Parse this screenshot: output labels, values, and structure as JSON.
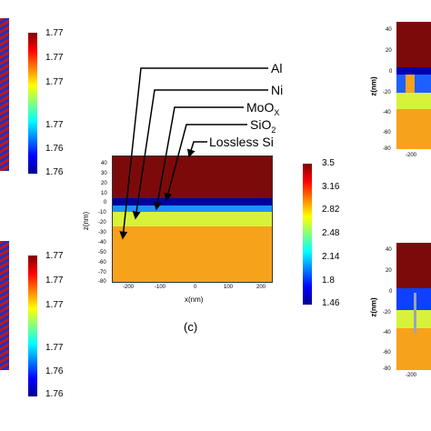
{
  "colormap": [
    "#00008f",
    "#0000ff",
    "#0080ff",
    "#00ffff",
    "#80ff80",
    "#ffff00",
    "#ff8000",
    "#ff0000",
    "#800000"
  ],
  "left_top_colorbar": {
    "ticks": [
      "1.77",
      "1.77",
      "1.77",
      "1.77",
      "1.76",
      "1.76"
    ]
  },
  "left_bottom_colorbar": {
    "ticks": [
      "1.77",
      "1.77",
      "1.77",
      "1.77",
      "1.76",
      "1.76"
    ]
  },
  "center_plot": {
    "caption": "(c)",
    "xlabel": "x(nm)",
    "ylabel": "z(nm)",
    "x_ticks": [
      "-200",
      "-100",
      "0",
      "100",
      "200"
    ],
    "z_ticks": [
      "40",
      "30",
      "20",
      "10",
      "0",
      "-10",
      "-20",
      "-30",
      "-40",
      "-50",
      "-60",
      "-70",
      "-80"
    ],
    "layers": [
      {
        "name": "Al",
        "color": "#7d0a0a"
      },
      {
        "name": "MoOx",
        "color": "#0000a0"
      },
      {
        "name": "SiO2",
        "color": "#1e90ff"
      },
      {
        "name": "Ni",
        "color": "#d8f23a"
      },
      {
        "name": "Lossless Si",
        "color": "#f7a21b"
      }
    ],
    "labels": {
      "al": "Al",
      "ni": "Ni",
      "moox_main": "MoO",
      "moox_sub": "X",
      "sio2_main": "SiO",
      "sio2_sub": "2",
      "si": "Lossless Si"
    },
    "colorbar_ticks": [
      "3.5",
      "3.16",
      "2.82",
      "2.48",
      "2.14",
      "1.8",
      "1.46"
    ]
  },
  "right_top_plot": {
    "ylabel": "z(nm)",
    "z_ticks": [
      "40",
      "20",
      "0",
      "-20",
      "-40",
      "-60",
      "-80"
    ],
    "x_ticks": [
      "-200"
    ]
  },
  "right_bottom_plot": {
    "ylabel": "z(nm)",
    "z_ticks": [
      "40",
      "20",
      "0",
      "-20",
      "-40",
      "-60",
      "-80"
    ],
    "x_ticks": [
      "-200"
    ]
  }
}
